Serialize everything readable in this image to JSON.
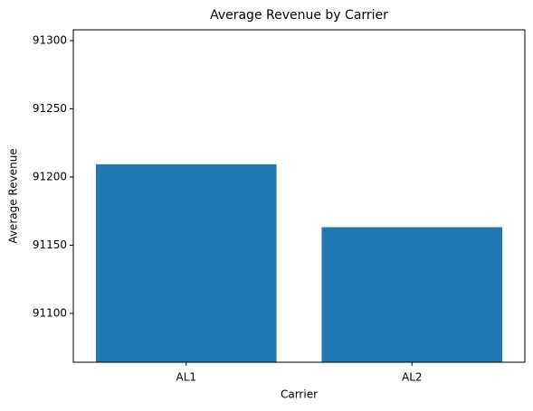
{
  "chart_data": {
    "type": "bar",
    "title": "Average Revenue by Carrier",
    "x_label": "Carrier",
    "y_label": "Average Revenue",
    "categories": [
      "AL1",
      "AL2"
    ],
    "values": [
      91209.3,
      91163.2
    ],
    "color": "#1f77b4",
    "ylim": [
      91064.2,
      91307.9
    ],
    "yticks": [
      91100,
      91150,
      91200,
      91250,
      91300
    ],
    "grid": false
  }
}
